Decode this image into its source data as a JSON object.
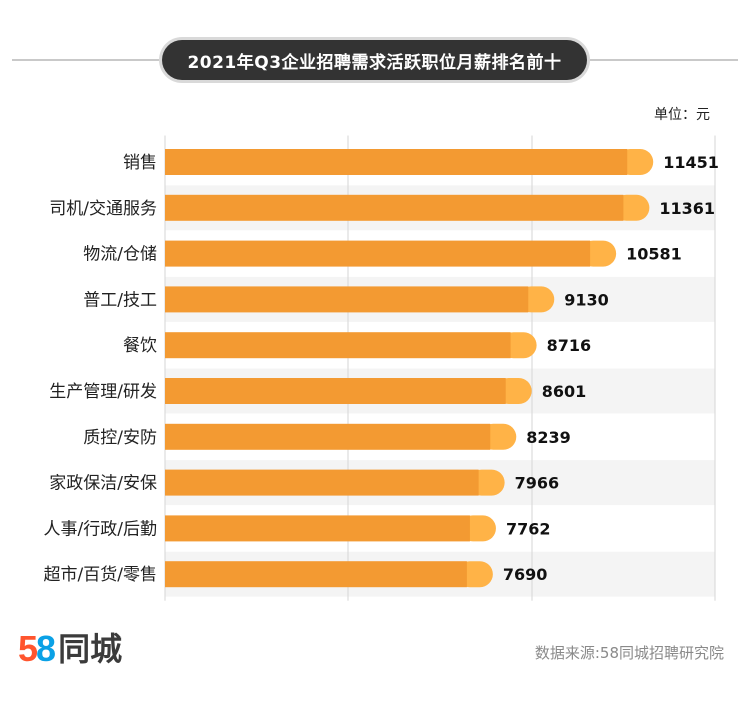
{
  "header": {
    "title": "2021年Q3企业招聘需求活跃职位月薪排名前十"
  },
  "unit_label": "单位：元",
  "footer": {
    "logo_5": "5",
    "logo_8": "8",
    "logo_text": "同城",
    "source": "数据来源:58同城招聘研究院"
  },
  "chart_data": {
    "type": "bar",
    "orientation": "horizontal",
    "title": "2021年Q3企业招聘需求活跃职位月薪排名前十",
    "unit": "单位：元",
    "categories": [
      "销售",
      "司机/交通服务",
      "物流/仓储",
      "普工/技工",
      "餐饮",
      "生产管理/研发",
      "质控/安防",
      "家政保洁/安保",
      "人事/行政/后勤",
      "超市/百货/零售"
    ],
    "values": [
      11451,
      11361,
      10581,
      9130,
      8716,
      8601,
      8239,
      7966,
      7762,
      7690
    ],
    "value_labels": [
      "11451",
      "11361",
      "10581",
      "9130",
      "8716",
      "8601",
      "8239",
      "7966",
      "7762",
      "7690"
    ],
    "grid": true,
    "colors": {
      "bar": "#f39a32",
      "bar_tip": "#ffb347",
      "band": "#f4f4f4",
      "grid": "#d6d6d6"
    }
  }
}
